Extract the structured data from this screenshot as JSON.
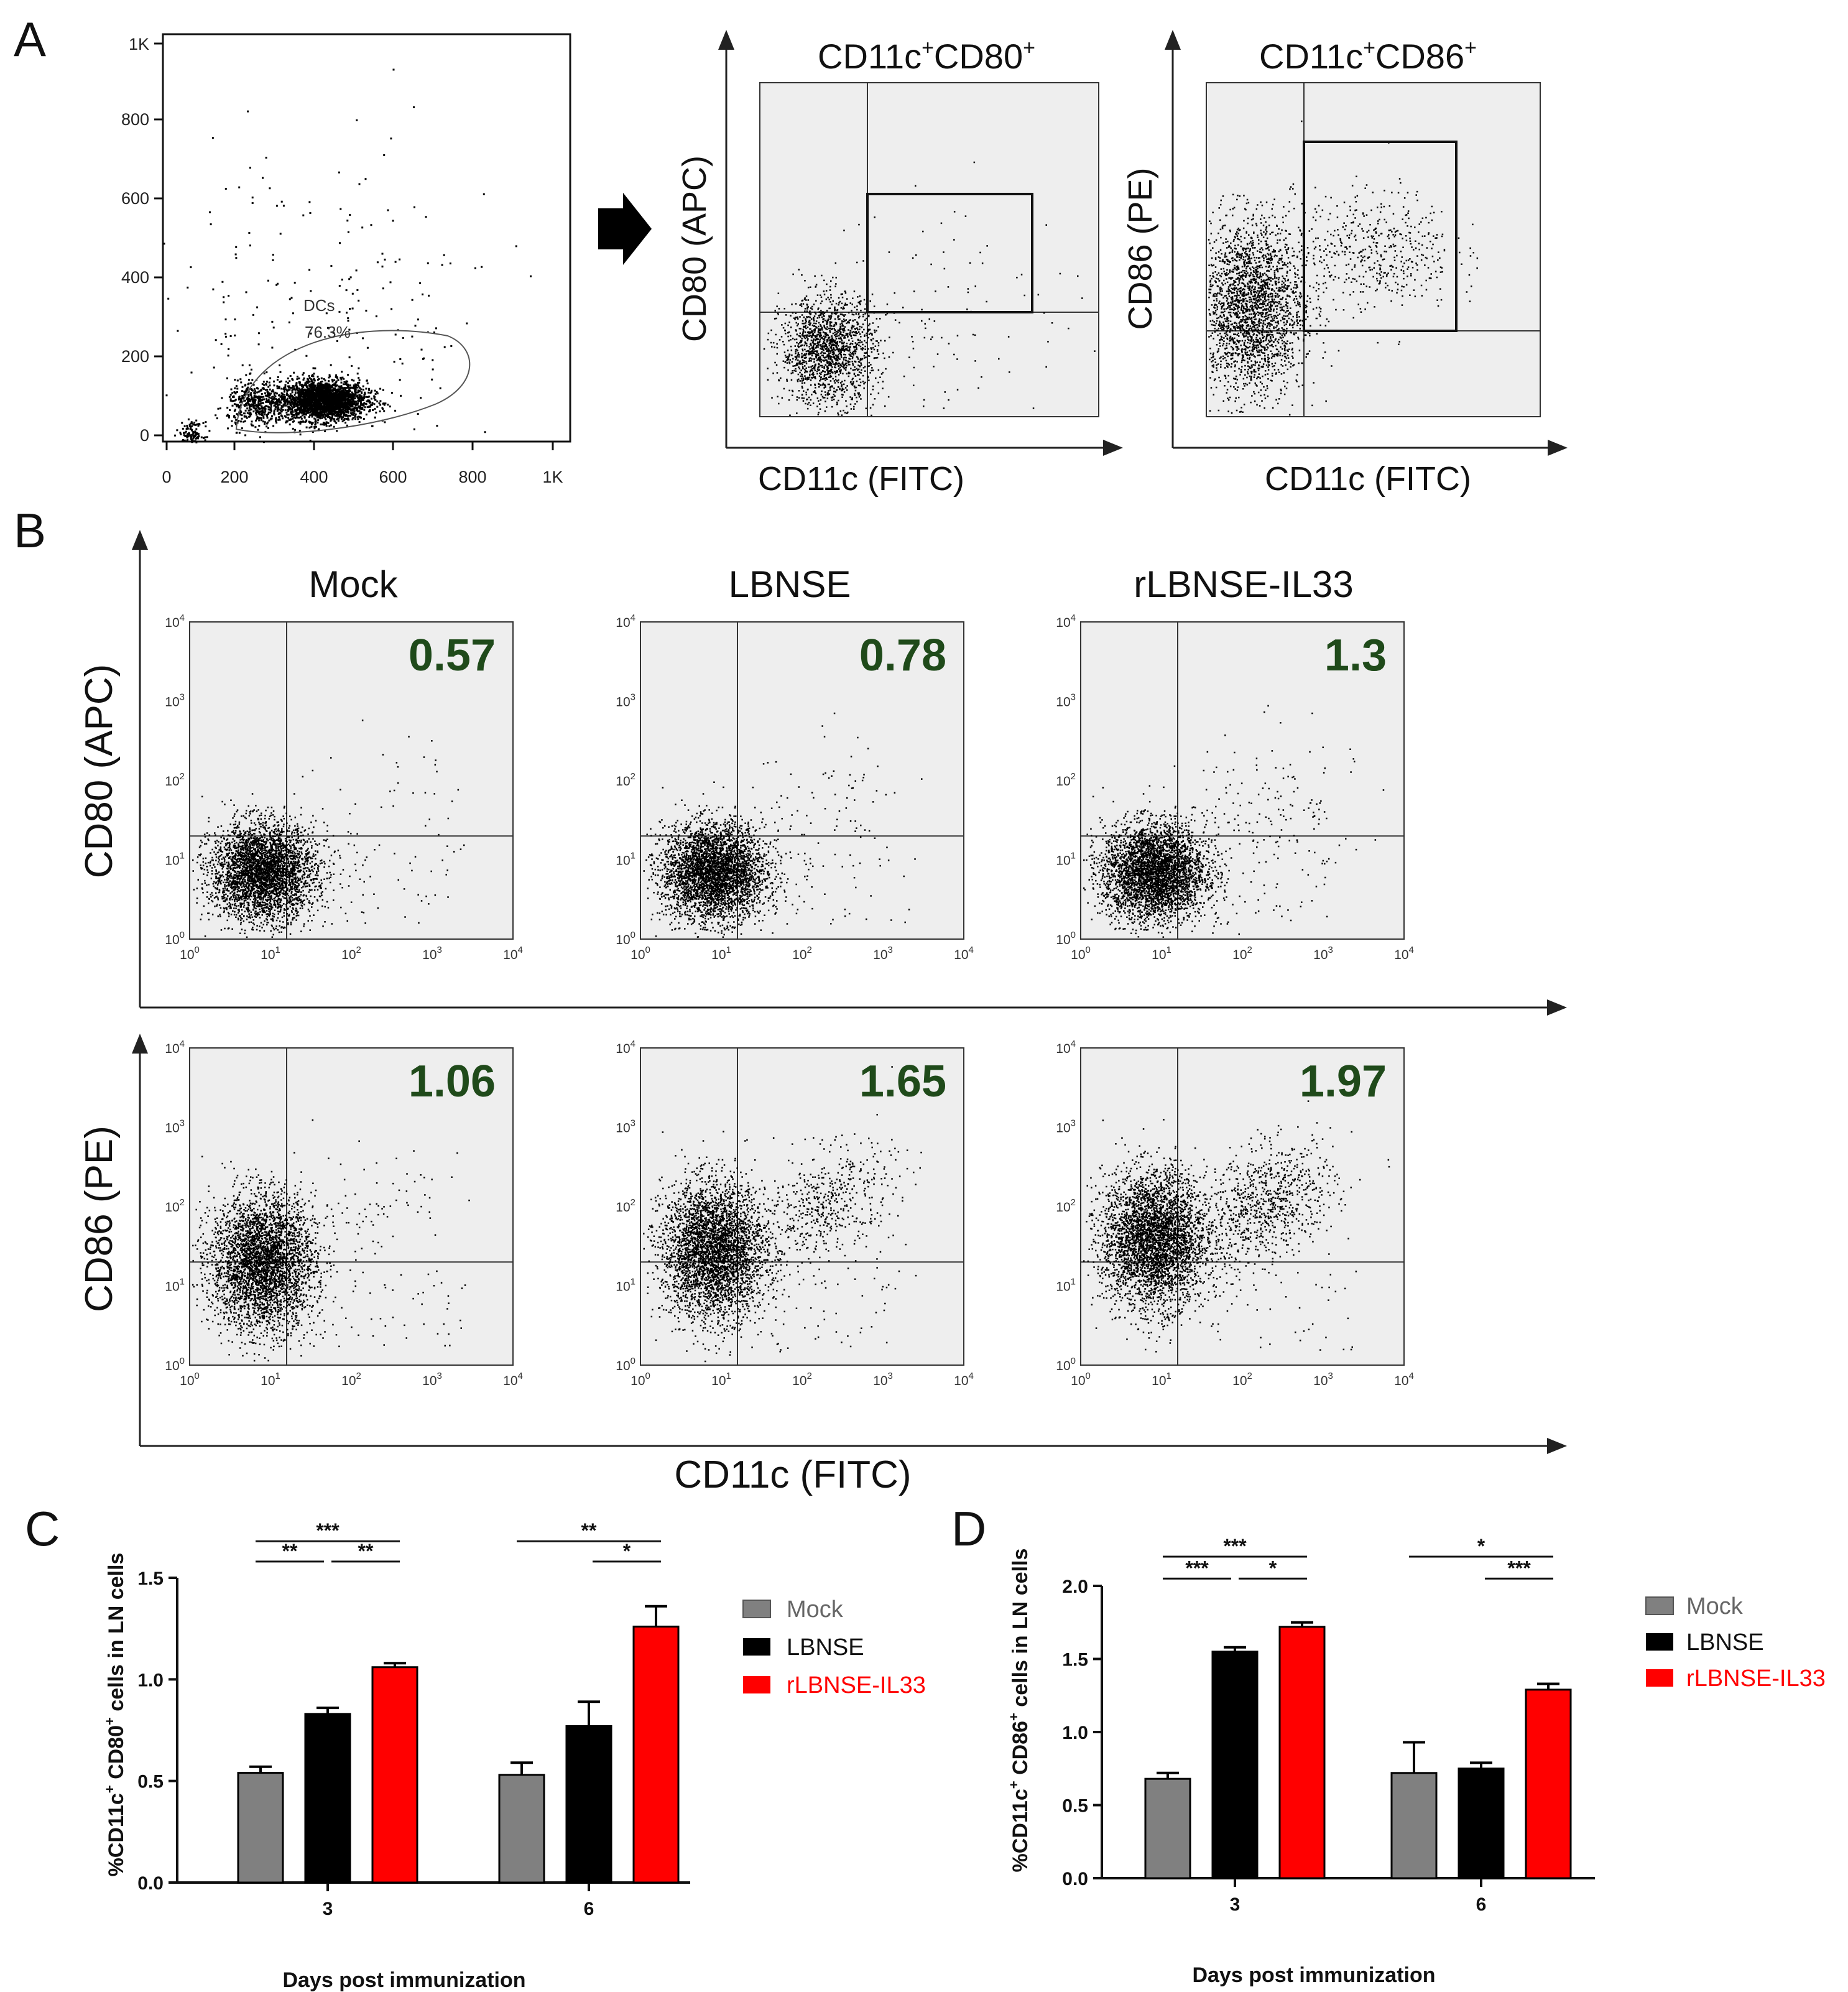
{
  "panel_labels": [
    "A",
    "B",
    "C",
    "D"
  ],
  "chart_data": [
    {
      "id": "A1",
      "type": "scatter",
      "title": "",
      "xlabel": "",
      "ylabel": "",
      "xlim": [
        0,
        1024
      ],
      "ylim": [
        0,
        1024
      ],
      "xticks": [
        "0",
        "200",
        "400",
        "600",
        "800",
        "1K"
      ],
      "yticks": [
        "0",
        "200",
        "400",
        "600",
        "800",
        "1K"
      ],
      "gate": {
        "name": "DCs",
        "percent": "76.3%"
      },
      "clusters": [
        {
          "x": 400,
          "y": 105,
          "sx": 55,
          "sy": 25,
          "n": 2600
        },
        {
          "x": 230,
          "y": 95,
          "sx": 35,
          "sy": 30,
          "n": 420
        },
        {
          "x": 70,
          "y": 20,
          "sx": 15,
          "sy": 15,
          "n": 120
        },
        {
          "x": 380,
          "y": 300,
          "sx": 240,
          "sy": 230,
          "n": 240
        }
      ]
    },
    {
      "id": "A2",
      "type": "scatter",
      "title_main": "CD11c",
      "title_sup1": "+",
      "title_mid": "CD80",
      "title_sup2": "+",
      "xlabel": "CD11c (FITC)",
      "ylabel": "CD80 (APC)",
      "gate_box": {
        "x": [
          0.33,
          0.82
        ],
        "y": [
          0.32,
          0.67
        ]
      },
      "clusters": [
        {
          "x": 0.2,
          "y": 0.2,
          "sx": 0.07,
          "sy": 0.08,
          "n": 1600
        },
        {
          "x": 0.55,
          "y": 0.3,
          "sx": 0.2,
          "sy": 0.18,
          "n": 110
        }
      ]
    },
    {
      "id": "A3",
      "type": "scatter",
      "title_main": "CD11c",
      "title_sup1": "+",
      "title_mid": "CD86",
      "title_sup2": "+",
      "xlabel": "CD11c (FITC)",
      "ylabel": "CD86 (PE)",
      "gate_box": {
        "x": [
          0.29,
          0.75
        ],
        "y": [
          0.27,
          0.83
        ]
      },
      "clusters": [
        {
          "x": 0.13,
          "y": 0.33,
          "sx": 0.08,
          "sy": 0.13,
          "n": 2400
        },
        {
          "x": 0.5,
          "y": 0.5,
          "sx": 0.12,
          "sy": 0.09,
          "n": 480
        }
      ]
    },
    {
      "id": "B",
      "type": "scatter",
      "xlabel": "CD11c (FITC)",
      "row_labels": [
        "CD80 (APC)",
        "CD86 (PE)"
      ],
      "column_titles": [
        "Mock",
        "LBNSE",
        "rLBNSE-IL33"
      ],
      "decades": [
        "10",
        "10",
        "10",
        "10",
        "10"
      ],
      "decade_sups": [
        "0",
        "1",
        "2",
        "3",
        "4"
      ],
      "quadrant_gate_decades": {
        "x": 1.2,
        "y": 1.3
      },
      "panels": [
        {
          "row": 0,
          "group": "Mock",
          "percent": "0.57",
          "positive_n": 60
        },
        {
          "row": 0,
          "group": "LBNSE",
          "percent": "0.78",
          "positive_n": 90
        },
        {
          "row": 0,
          "group": "rLBNSE-IL33",
          "percent": "1.3",
          "positive_n": 170
        },
        {
          "row": 1,
          "group": "Mock",
          "percent": "1.06",
          "positive_n": 70
        },
        {
          "row": 1,
          "group": "LBNSE",
          "percent": "1.65",
          "positive_n": 520
        },
        {
          "row": 1,
          "group": "rLBNSE-IL33",
          "percent": "1.97",
          "positive_n": 820
        }
      ]
    },
    {
      "id": "C",
      "type": "bar",
      "xlabel": "Days post immunization",
      "ylabel_pre": "%CD11c",
      "ylabel_sup1": "+",
      "ylabel_mid": " CD80",
      "ylabel_sup2": "+",
      "ylabel_post": " cells in LN cells",
      "ylim": [
        0,
        1.5
      ],
      "yticks": [
        "0.0",
        "0.5",
        "1.0",
        "1.5"
      ],
      "categories": [
        "3",
        "6"
      ],
      "series": [
        {
          "name": "Mock",
          "color": "#808080",
          "values": [
            0.54,
            0.53
          ],
          "errors": [
            0.03,
            0.06
          ]
        },
        {
          "name": "LBNSE",
          "color": "#000000",
          "values": [
            0.83,
            0.77
          ],
          "errors": [
            0.03,
            0.12
          ]
        },
        {
          "name": "rLBNSE-IL33",
          "color": "#ff0000",
          "values": [
            1.06,
            1.26
          ],
          "errors": [
            0.02,
            0.1
          ]
        }
      ],
      "significance": [
        {
          "cat": 0,
          "from": 0,
          "to": 2,
          "label": "***",
          "level": 1.68
        },
        {
          "cat": 0,
          "from": 0,
          "to": 1,
          "label": "**",
          "level": 1.58
        },
        {
          "cat": 0,
          "from": 1,
          "to": 2,
          "label": "**",
          "level": 1.58
        },
        {
          "cat": 1,
          "from": 0,
          "to": 2,
          "label": "**",
          "level": 1.68
        },
        {
          "cat": 1,
          "from": 1,
          "to": 2,
          "label": "*",
          "level": 1.58
        }
      ]
    },
    {
      "id": "D",
      "type": "bar",
      "xlabel": "Days post immunization",
      "ylabel_pre": "%CD11c",
      "ylabel_sup1": "+",
      "ylabel_mid": " CD86",
      "ylabel_sup2": "+",
      "ylabel_post": " cells in LN cells",
      "ylim": [
        0,
        2.0
      ],
      "yticks": [
        "0.0",
        "0.5",
        "1.0",
        "1.5",
        "2.0"
      ],
      "categories": [
        "3",
        "6"
      ],
      "series": [
        {
          "name": "Mock",
          "color": "#808080",
          "values": [
            0.68,
            0.72
          ],
          "errors": [
            0.04,
            0.21
          ]
        },
        {
          "name": "LBNSE",
          "color": "#000000",
          "values": [
            1.55,
            0.75
          ],
          "errors": [
            0.03,
            0.04
          ]
        },
        {
          "name": "rLBNSE-IL33",
          "color": "#ff0000",
          "values": [
            1.72,
            1.29
          ],
          "errors": [
            0.03,
            0.04
          ]
        }
      ],
      "significance": [
        {
          "cat": 0,
          "from": 0,
          "to": 2,
          "label": "***",
          "level": 2.2
        },
        {
          "cat": 0,
          "from": 0,
          "to": 1,
          "label": "***",
          "level": 2.05
        },
        {
          "cat": 0,
          "from": 1,
          "to": 2,
          "label": "*",
          "level": 2.05
        },
        {
          "cat": 1,
          "from": 0,
          "to": 2,
          "label": "*",
          "level": 2.2
        },
        {
          "cat": 1,
          "from": 1,
          "to": 2,
          "label": "***",
          "level": 2.05
        }
      ]
    }
  ]
}
